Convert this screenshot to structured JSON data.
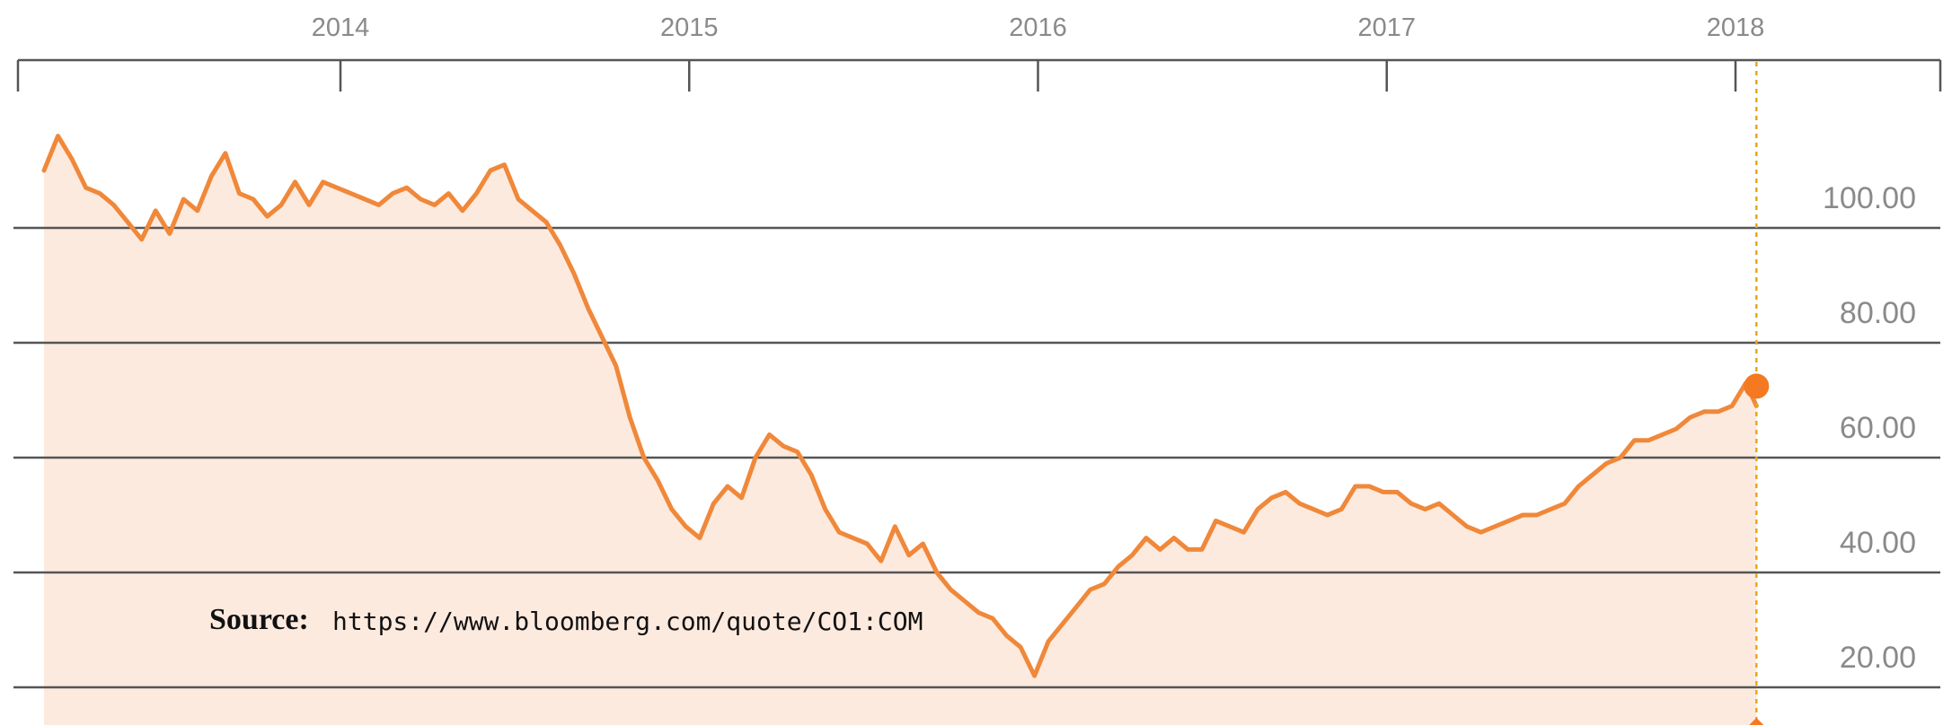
{
  "chart_data": {
    "type": "area",
    "title": "",
    "xlabel": "",
    "ylabel": "",
    "x_tick_labels": [
      "2014",
      "2015",
      "2016",
      "2017",
      "2018"
    ],
    "y_tick_labels": [
      "100.00",
      "80.00",
      "60.00",
      "40.00",
      "20.00"
    ],
    "y_ticks": [
      100,
      80,
      60,
      40,
      20
    ],
    "xlim": [
      2013.15,
      2018.6
    ],
    "ylim": [
      0,
      120
    ],
    "grid": "horizontal",
    "series": [
      {
        "x": [
          2013.15,
          2013.19,
          2013.23,
          2013.27,
          2013.31,
          2013.35,
          2013.39,
          2013.43,
          2013.47,
          2013.51,
          2013.55,
          2013.59,
          2013.63,
          2013.67,
          2013.71,
          2013.75,
          2013.79,
          2013.83,
          2013.87,
          2013.91,
          2013.95,
          2013.99,
          2014.03,
          2014.07,
          2014.11,
          2014.15,
          2014.19,
          2014.23,
          2014.27,
          2014.31,
          2014.35,
          2014.39,
          2014.43,
          2014.47,
          2014.51,
          2014.55,
          2014.59,
          2014.63,
          2014.67,
          2014.71,
          2014.75,
          2014.79,
          2014.83,
          2014.87,
          2014.91,
          2014.95,
          2014.99,
          2015.03,
          2015.07,
          2015.11,
          2015.15,
          2015.19,
          2015.23,
          2015.27,
          2015.31,
          2015.35,
          2015.39,
          2015.43,
          2015.47,
          2015.51,
          2015.55,
          2015.59,
          2015.63,
          2015.67,
          2015.71,
          2015.75,
          2015.79,
          2015.83,
          2015.87,
          2015.91,
          2015.95,
          2015.99,
          2016.03,
          2016.07,
          2016.11,
          2016.15,
          2016.19,
          2016.23,
          2016.27,
          2016.31,
          2016.35,
          2016.39,
          2016.43,
          2016.47,
          2016.51,
          2016.55,
          2016.59,
          2016.63,
          2016.67,
          2016.71,
          2016.75,
          2016.79,
          2016.83,
          2016.87,
          2016.91,
          2016.95,
          2016.99,
          2017.03,
          2017.07,
          2017.11,
          2017.15,
          2017.19,
          2017.23,
          2017.27,
          2017.31,
          2017.35,
          2017.39,
          2017.43,
          2017.47,
          2017.51,
          2017.55,
          2017.59,
          2017.63,
          2017.67,
          2017.71,
          2017.75,
          2017.79,
          2017.83,
          2017.87,
          2017.91,
          2017.95,
          2017.99,
          2018.03,
          2018.06
        ],
        "values": [
          110,
          116,
          112,
          107,
          106,
          104,
          101,
          98,
          103,
          99,
          105,
          103,
          109,
          113,
          106,
          105,
          102,
          104,
          108,
          104,
          108,
          107,
          106,
          105,
          104,
          106,
          107,
          105,
          104,
          106,
          103,
          106,
          110,
          111,
          105,
          103,
          101,
          97,
          92,
          86,
          81,
          76,
          67,
          60,
          56,
          51,
          48,
          46,
          52,
          55,
          53,
          60,
          64,
          62,
          61,
          57,
          51,
          47,
          46,
          45,
          42,
          48,
          43,
          45,
          40,
          37,
          35,
          33,
          32,
          29,
          27,
          22,
          28,
          31,
          34,
          37,
          38,
          41,
          43,
          46,
          44,
          46,
          44,
          44,
          49,
          48,
          47,
          51,
          53,
          54,
          52,
          51,
          50,
          51,
          55,
          55,
          54,
          54,
          52,
          51,
          52,
          50,
          48,
          47,
          48,
          49,
          50,
          50,
          51,
          52,
          55,
          57,
          59,
          60,
          63,
          63,
          64,
          65,
          67,
          68,
          68,
          69,
          73,
          69
        ],
        "color": "#f0883a"
      }
    ],
    "current_marker": {
      "x": 2018.06,
      "value": 69
    },
    "colors": {
      "line": "#f0883a",
      "fill": "#fdeadf",
      "grid": "#555555",
      "marker": "#f47920",
      "vline": "#e6a817",
      "tick_text": "#8a8a8a"
    },
    "annotation": {
      "source_label": "Source:",
      "source_url": "https://www.bloomberg.com/quote/CO1:COM"
    }
  }
}
